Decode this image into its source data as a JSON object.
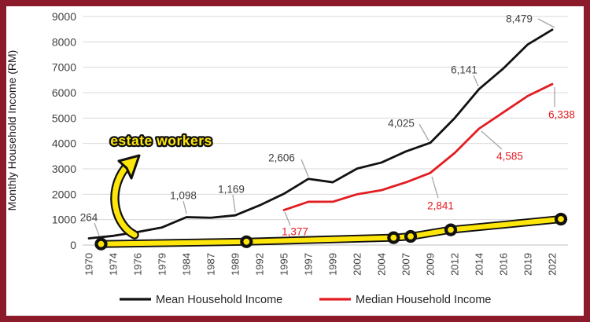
{
  "frame": {
    "border_color": "#8b1b2b",
    "background": "#ffffff"
  },
  "chart_data": {
    "type": "line",
    "title": "",
    "xlabel": "",
    "ylabel": "Monthly Household Income (RM)",
    "ylim": [
      0,
      9000
    ],
    "y_ticks": [
      0,
      1000,
      2000,
      3000,
      4000,
      5000,
      6000,
      7000,
      8000,
      9000
    ],
    "grid": true,
    "gridline_color": "#d9d9d9",
    "legend_position": "bottom",
    "categories": [
      "1970",
      "1974",
      "1976",
      "1979",
      "1984",
      "1987",
      "1989",
      "1992",
      "1995",
      "1997",
      "1999",
      "2002",
      "2004",
      "2007",
      "2009",
      "2012",
      "2014",
      "2016",
      "2019",
      "2022"
    ],
    "series": [
      {
        "name": "Mean Household Income",
        "color": "#121212",
        "values": [
          264,
          362,
          514,
          693,
          1098,
          1074,
          1169,
          1563,
          2020,
          2606,
          2472,
          3011,
          3249,
          3686,
          4025,
          5000,
          6141,
          6958,
          7901,
          8479
        ],
        "labeled_points": {
          "1970": "264",
          "1984": "1,098",
          "1989": "1,169",
          "1997": "2,606",
          "2009": "4,025",
          "2014": "6,141",
          "2022": "8,479"
        },
        "label_color": "#3f3f3f"
      },
      {
        "name": "Median Household Income",
        "color": "#e21d22",
        "values": [
          null,
          null,
          null,
          null,
          null,
          null,
          null,
          null,
          1377,
          1703,
          1704,
          2000,
          2161,
          2470,
          2841,
          3626,
          4585,
          5228,
          5873,
          6338
        ],
        "labeled_points": {
          "1995": "1,377",
          "2009": "2,841",
          "2014": "4,585",
          "2022": "6,338"
        },
        "label_color": "#e21d22"
      }
    ],
    "annotation_series": {
      "name": "estate workers",
      "style": "hand-drawn yellow highlight line with black-ringed circular markers",
      "color": "#ffe60a",
      "marker_ring_color": "#111111",
      "values_are_estimates": true,
      "points": [
        {
          "year": 1972,
          "value": 40
        },
        {
          "year": 1990,
          "value": 130
        },
        {
          "year": 2005,
          "value": 290
        },
        {
          "year": 2007,
          "value": 340
        },
        {
          "year": 2012,
          "value": 600
        },
        {
          "year": 2022,
          "value": 1020
        }
      ]
    },
    "annotations": [
      {
        "text": "estate workers",
        "type": "callout-with-curved-arrow",
        "text_color": "#ffe60a",
        "outline_color": "#111111"
      }
    ],
    "leader_line_color": "#a6a6a6"
  },
  "legend": {
    "items": [
      {
        "label": "Mean Household Income",
        "color": "#121212"
      },
      {
        "label": "Median Household Income",
        "color": "#e21d22"
      }
    ]
  }
}
